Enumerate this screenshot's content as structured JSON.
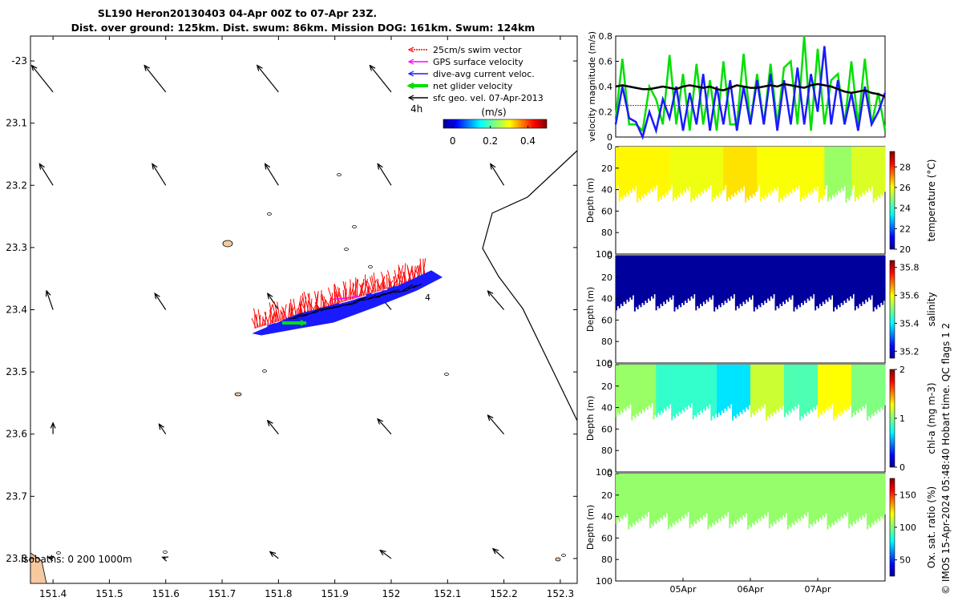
{
  "figure": {
    "title_line1": "SL190 Heron20130403 04-Apr 00Z to 07-Apr 23Z.",
    "title_line2": "Dist. over ground: 125km. Dist. swum: 86km. Mission DOG: 161km. Swum: 124km",
    "credit": "© IMOS 15-Apr-2024 05:48:40 Hobart time. QC flags 1  2",
    "colors": {
      "land": "#f6c9a0",
      "swim": "#ff0000",
      "gps": "#ff00ff",
      "current": "#1a1aff",
      "net": "#00e000",
      "geo": "#000000"
    }
  },
  "map": {
    "xlim": [
      151.36,
      152.33
    ],
    "ylim_south": [
      22.96,
      23.84
    ],
    "x_ticks": [
      151.4,
      151.5,
      151.6,
      151.7,
      151.8,
      151.9,
      152,
      152.1,
      152.2,
      152.3
    ],
    "x_tick_labels": [
      "151.4",
      "151.5",
      "151.6",
      "151.7",
      "151.8",
      "151.9",
      "152",
      "152.1",
      "152.2",
      "152.3"
    ],
    "y_ticks": [
      23.0,
      23.1,
      23.2,
      23.3,
      23.4,
      23.5,
      23.6,
      23.7,
      23.8
    ],
    "y_tick_labels": [
      "-23",
      "23.1",
      "23.2",
      "23.3",
      "23.4",
      "23.5",
      "23.6",
      "23.7",
      "23.8"
    ],
    "legend": [
      {
        "label": "25cm/s swim vector",
        "color_key": "swim",
        "style": "dotted"
      },
      {
        "label": "GPS surface velocity",
        "color_key": "gps",
        "style": "solid"
      },
      {
        "label": "dive-avg current veloc.",
        "color_key": "current",
        "style": "solid"
      },
      {
        "label": "net glider velocity",
        "color_key": "net",
        "style": "thick"
      },
      {
        "label": "sfc geo. vel. 07-Apr-2013",
        "color_key": "geo",
        "style": "solid"
      }
    ],
    "time_label": "4h",
    "colorbar": {
      "label": "(m/s)",
      "ticks": [
        0,
        0.2,
        0.4
      ],
      "tick_labels": [
        "0",
        "0.2",
        "0.4"
      ],
      "range": [
        -0.05,
        0.5
      ]
    },
    "isobaths_label": "isobaths: 0   200  1000m",
    "end_marker": "4",
    "geo_vectors": [
      {
        "lon": 151.4,
        "lat": 23.05,
        "u": -0.04,
        "v": 0.05
      },
      {
        "lon": 151.6,
        "lat": 23.05,
        "u": -0.04,
        "v": 0.05
      },
      {
        "lon": 151.8,
        "lat": 23.05,
        "u": -0.04,
        "v": 0.05
      },
      {
        "lon": 152.0,
        "lat": 23.05,
        "u": -0.04,
        "v": 0.05
      },
      {
        "lon": 152.2,
        "lat": 23.05,
        "u": -0.04,
        "v": 0.05
      },
      {
        "lon": 151.4,
        "lat": 23.2,
        "u": -0.025,
        "v": 0.04
      },
      {
        "lon": 151.6,
        "lat": 23.2,
        "u": -0.025,
        "v": 0.04
      },
      {
        "lon": 151.8,
        "lat": 23.2,
        "u": -0.025,
        "v": 0.04
      },
      {
        "lon": 152.0,
        "lat": 23.2,
        "u": -0.025,
        "v": 0.04
      },
      {
        "lon": 152.2,
        "lat": 23.2,
        "u": -0.025,
        "v": 0.04
      },
      {
        "lon": 151.4,
        "lat": 23.4,
        "u": -0.012,
        "v": 0.035
      },
      {
        "lon": 151.6,
        "lat": 23.4,
        "u": -0.02,
        "v": 0.03
      },
      {
        "lon": 151.8,
        "lat": 23.4,
        "u": -0.02,
        "v": 0.03
      },
      {
        "lon": 152.0,
        "lat": 23.4,
        "u": -0.025,
        "v": 0.03
      },
      {
        "lon": 152.2,
        "lat": 23.4,
        "u": -0.03,
        "v": 0.035
      },
      {
        "lon": 151.4,
        "lat": 23.6,
        "u": 0.0,
        "v": 0.02
      },
      {
        "lon": 151.6,
        "lat": 23.6,
        "u": -0.012,
        "v": 0.018
      },
      {
        "lon": 151.8,
        "lat": 23.6,
        "u": -0.02,
        "v": 0.025
      },
      {
        "lon": 152.0,
        "lat": 23.6,
        "u": -0.025,
        "v": 0.028
      },
      {
        "lon": 152.2,
        "lat": 23.6,
        "u": -0.03,
        "v": 0.035
      },
      {
        "lon": 151.4,
        "lat": 23.8,
        "u": -0.008,
        "v": 0.002
      },
      {
        "lon": 151.6,
        "lat": 23.8,
        "u": -0.005,
        "v": 0.002
      },
      {
        "lon": 151.8,
        "lat": 23.8,
        "u": -0.015,
        "v": 0.012
      },
      {
        "lon": 152.0,
        "lat": 23.8,
        "u": -0.02,
        "v": 0.015
      },
      {
        "lon": 152.2,
        "lat": 23.8,
        "u": -0.02,
        "v": 0.018
      }
    ]
  },
  "chart_data": [
    {
      "type": "line",
      "title": "",
      "xlabel": "",
      "ylabel": "velocity magnitude (m/s)",
      "ylim": [
        0,
        0.8
      ],
      "y_ticks": [
        0,
        0.2,
        0.4,
        0.6,
        0.8
      ],
      "y_tick_labels": [
        "0",
        "0.2",
        "0.4",
        "0.6",
        "0.8"
      ],
      "xlim_days": [
        0,
        4.0
      ],
      "x": [
        0,
        0.1,
        0.2,
        0.3,
        0.4,
        0.5,
        0.6,
        0.7,
        0.8,
        0.9,
        1.0,
        1.1,
        1.2,
        1.3,
        1.4,
        1.5,
        1.6,
        1.7,
        1.8,
        1.9,
        2.0,
        2.1,
        2.2,
        2.3,
        2.4,
        2.5,
        2.6,
        2.7,
        2.8,
        2.9,
        3.0,
        3.1,
        3.2,
        3.3,
        3.4,
        3.5,
        3.6,
        3.7,
        3.8,
        3.9,
        4.0
      ],
      "series": [
        {
          "name": "net glider velocity",
          "color_key": "net",
          "values": [
            0.15,
            0.62,
            0.1,
            0.1,
            0.05,
            0.4,
            0.3,
            0.1,
            0.65,
            0.1,
            0.5,
            0.05,
            0.58,
            0.1,
            0.45,
            0.05,
            0.6,
            0.1,
            0.1,
            0.66,
            0.1,
            0.5,
            0.1,
            0.58,
            0.1,
            0.55,
            0.6,
            0.1,
            0.8,
            0.05,
            0.7,
            0.1,
            0.45,
            0.5,
            0.1,
            0.6,
            0.1,
            0.62,
            0.1,
            0.35,
            0.05
          ]
        },
        {
          "name": "dive-avg current veloc.",
          "color_key": "current",
          "values": [
            0.1,
            0.4,
            0.15,
            0.12,
            0.0,
            0.2,
            0.05,
            0.3,
            0.15,
            0.4,
            0.05,
            0.35,
            0.1,
            0.5,
            0.05,
            0.4,
            0.1,
            0.45,
            0.05,
            0.4,
            0.1,
            0.45,
            0.1,
            0.5,
            0.05,
            0.45,
            0.1,
            0.55,
            0.1,
            0.5,
            0.2,
            0.72,
            0.1,
            0.45,
            0.1,
            0.35,
            0.05,
            0.4,
            0.1,
            0.2,
            0.35
          ]
        },
        {
          "name": "sfc geo. vel.",
          "color_key": "geo",
          "values": [
            0.4,
            0.41,
            0.4,
            0.39,
            0.38,
            0.38,
            0.39,
            0.4,
            0.39,
            0.38,
            0.4,
            0.41,
            0.4,
            0.39,
            0.4,
            0.38,
            0.37,
            0.39,
            0.41,
            0.4,
            0.39,
            0.39,
            0.4,
            0.41,
            0.4,
            0.42,
            0.41,
            0.4,
            0.39,
            0.41,
            0.42,
            0.41,
            0.4,
            0.38,
            0.36,
            0.35,
            0.36,
            0.37,
            0.35,
            0.34,
            0.32
          ]
        },
        {
          "name": "25cm/s swim vector",
          "color_key": "swim",
          "values": [
            0.25,
            0.25,
            0.25,
            0.25,
            0.25,
            0.25,
            0.25,
            0.25,
            0.25,
            0.25,
            0.25,
            0.25,
            0.25,
            0.25,
            0.25,
            0.25,
            0.25,
            0.25,
            0.25,
            0.25,
            0.25,
            0.25,
            0.25,
            0.25,
            0.25,
            0.25,
            0.25,
            0.25,
            0.25,
            0.25,
            0.25,
            0.25,
            0.25,
            0.25,
            0.25,
            0.25,
            0.25,
            0.25,
            0.25,
            0.25,
            0.25
          ]
        }
      ]
    },
    {
      "type": "heatmap",
      "variable": "temperature",
      "ylabel": "Depth (m)",
      "colorbar_label": "temperature (°C)",
      "cmin": 20,
      "cmax": 29.5,
      "cbar_ticks": [
        20,
        22,
        24,
        26,
        28
      ],
      "cbar_tick_labels": [
        "20",
        "22",
        "24",
        "26",
        "28"
      ],
      "ylim": [
        0,
        100
      ],
      "y_ticks": [
        0,
        20,
        40,
        60,
        80,
        100
      ],
      "y_tick_labels": [
        "0",
        "20",
        "40",
        "60",
        "80",
        "100"
      ],
      "segments": [
        {
          "t0": 0,
          "t1": 0.8,
          "value": 26.0
        },
        {
          "t0": 0.8,
          "t1": 1.6,
          "value": 25.8
        },
        {
          "t0": 1.6,
          "t1": 2.1,
          "value": 26.2
        },
        {
          "t0": 2.1,
          "t1": 3.1,
          "value": 25.9
        },
        {
          "t0": 3.1,
          "t1": 3.5,
          "value": 25.0
        },
        {
          "t0": 3.5,
          "t1": 4.0,
          "value": 25.6
        }
      ]
    },
    {
      "type": "heatmap",
      "variable": "salinity",
      "ylabel": "Depth (m)",
      "colorbar_label": "salinity",
      "cmin": 35.15,
      "cmax": 35.85,
      "cbar_ticks": [
        35.2,
        35.4,
        35.6,
        35.8
      ],
      "cbar_tick_labels": [
        "35.2",
        "35.4",
        "35.6",
        "35.8"
      ],
      "ylim": [
        0,
        100
      ],
      "y_ticks": [
        0,
        20,
        40,
        60,
        80,
        100
      ],
      "y_tick_labels": [
        "0",
        "20",
        "40",
        "60",
        "80",
        "100"
      ],
      "segments": [
        {
          "t0": 0,
          "t1": 4.0,
          "value": 35.17
        }
      ]
    },
    {
      "type": "heatmap",
      "variable": "chl-a",
      "ylabel": "Depth (m)",
      "colorbar_label": "chl-a (mg m-3)",
      "cmin": 0,
      "cmax": 2,
      "cbar_ticks": [
        0,
        1,
        2
      ],
      "cbar_tick_labels": [
        "0",
        "1",
        "2"
      ],
      "ylim": [
        0,
        100
      ],
      "y_ticks": [
        0,
        20,
        40,
        60,
        80,
        100
      ],
      "y_tick_labels": [
        "0",
        "20",
        "40",
        "60",
        "80",
        "100"
      ],
      "segments": [
        {
          "t0": 0,
          "t1": 0.6,
          "value": 1.05
        },
        {
          "t0": 0.6,
          "t1": 1.5,
          "value": 0.85
        },
        {
          "t0": 1.5,
          "t1": 2.0,
          "value": 0.7
        },
        {
          "t0": 2.0,
          "t1": 2.5,
          "value": 1.15
        },
        {
          "t0": 2.5,
          "t1": 3.0,
          "value": 0.9
        },
        {
          "t0": 3.0,
          "t1": 3.5,
          "value": 1.25
        },
        {
          "t0": 3.5,
          "t1": 4.0,
          "value": 1.0
        }
      ]
    },
    {
      "type": "heatmap",
      "variable": "oxygen",
      "ylabel": "Depth (m)",
      "colorbar_label": "Ox. sat. ratio (%)",
      "cmin": 25,
      "cmax": 175,
      "cbar_ticks": [
        50,
        100,
        150
      ],
      "cbar_tick_labels": [
        "50",
        "100",
        "150"
      ],
      "ylim": [
        0,
        100
      ],
      "y_ticks": [
        0,
        20,
        40,
        60,
        80,
        100
      ],
      "y_tick_labels": [
        "0",
        "20",
        "40",
        "60",
        "80",
        "100"
      ],
      "x_ticks_days": [
        1,
        2,
        3
      ],
      "x_tick_labels": [
        "05Apr",
        "06Apr",
        "07Apr"
      ],
      "segments": [
        {
          "t0": 0,
          "t1": 4.0,
          "value": 103
        }
      ]
    }
  ]
}
